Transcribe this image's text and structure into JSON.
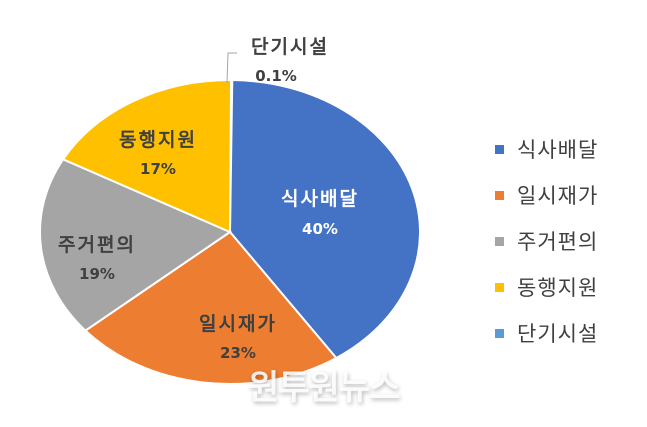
{
  "chart_data": {
    "type": "pie",
    "title": "",
    "categories": [
      "식사배달",
      "일시재가",
      "주거편의",
      "동행지원",
      "단기시설"
    ],
    "values": [
      40,
      23,
      19,
      17,
      0.1
    ],
    "value_labels": [
      "40%",
      "23%",
      "19%",
      "17%",
      "0.1%"
    ],
    "colors": [
      "#4472C4",
      "#ED7D31",
      "#A5A5A5",
      "#FFC000",
      "#5B9BD5"
    ],
    "legend_position": "right",
    "start_angle_order": [
      "단기시설",
      "식사배달",
      "일시재가",
      "주거편의",
      "동행지원"
    ]
  },
  "legend": {
    "items": [
      {
        "label": "식사배달",
        "color": "#4472C4"
      },
      {
        "label": "일시재가",
        "color": "#ED7D31"
      },
      {
        "label": "주거편의",
        "color": "#A5A5A5"
      },
      {
        "label": "동행지원",
        "color": "#FFC000"
      },
      {
        "label": "단기시설",
        "color": "#5B9BD5"
      }
    ]
  },
  "watermark": "원투원뉴스"
}
